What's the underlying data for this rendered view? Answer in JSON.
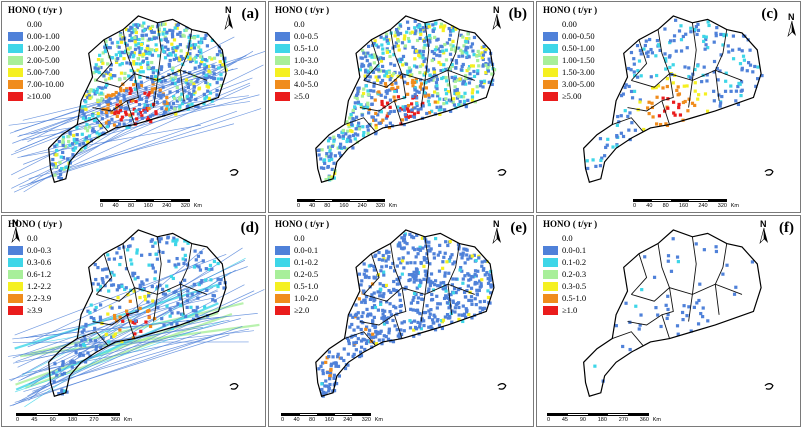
{
  "panels": [
    {
      "id": "a",
      "label": "(a)",
      "legend_title": "HONO ( t/yr )",
      "legend": [
        {
          "text": "0.00",
          "color": "#ffffff"
        },
        {
          "text": "0.00-1.00",
          "color": "#4f81d9"
        },
        {
          "text": "1.00-2.00",
          "color": "#3ed6e8"
        },
        {
          "text": "2.00-5.00",
          "color": "#a8ef9a"
        },
        {
          "text": "5.00-7.00",
          "color": "#f5f021"
        },
        {
          "text": "7.00-10.00",
          "color": "#f08c1c"
        },
        {
          "text": "≥10.00",
          "color": "#ea1c1c"
        }
      ],
      "scale_ticks": [
        "0",
        "40",
        "80",
        "160",
        "240",
        "320"
      ],
      "scale_unit": "Km",
      "north": "N"
    },
    {
      "id": "b",
      "label": "(b)",
      "legend_title": "HONO ( t/yr )",
      "legend": [
        {
          "text": "0.0",
          "color": "#ffffff"
        },
        {
          "text": "0.0-0.5",
          "color": "#4f81d9"
        },
        {
          "text": "0.5-1.0",
          "color": "#3ed6e8"
        },
        {
          "text": "1.0-3.0",
          "color": "#a8ef9a"
        },
        {
          "text": "3.0-4.0",
          "color": "#f5f021"
        },
        {
          "text": "4.0-5.0",
          "color": "#f08c1c"
        },
        {
          "text": "≥5.0",
          "color": "#ea1c1c"
        }
      ],
      "scale_ticks": [
        "0",
        "40",
        "80",
        "160",
        "240",
        "320"
      ],
      "scale_unit": "Km",
      "north": "N"
    },
    {
      "id": "c",
      "label": "(c)",
      "legend_title": "HONO ( t/yr )",
      "legend": [
        {
          "text": "0.00",
          "color": "#ffffff"
        },
        {
          "text": "0.00-0.50",
          "color": "#4f81d9"
        },
        {
          "text": "0.50-1.00",
          "color": "#3ed6e8"
        },
        {
          "text": "1.00-1.50",
          "color": "#a8ef9a"
        },
        {
          "text": "1.50-3.00",
          "color": "#f5f021"
        },
        {
          "text": "3.00-5.00",
          "color": "#f08c1c"
        },
        {
          "text": "≥5.00",
          "color": "#ea1c1c"
        }
      ],
      "scale_ticks": [
        "0",
        "40",
        "80",
        "160",
        "240",
        "320"
      ],
      "scale_unit": "Km",
      "north": "N"
    },
    {
      "id": "d",
      "label": "(d)",
      "legend_title": "HONO ( t/yr )",
      "legend": [
        {
          "text": "0.0",
          "color": "#ffffff"
        },
        {
          "text": "0.0-0.3",
          "color": "#4f81d9"
        },
        {
          "text": "0.3-0.6",
          "color": "#3ed6e8"
        },
        {
          "text": "0.6-1.2",
          "color": "#a8ef9a"
        },
        {
          "text": "1.2-2.2",
          "color": "#f5f021"
        },
        {
          "text": "2.2-3.9",
          "color": "#f08c1c"
        },
        {
          "text": "≥3.9",
          "color": "#ea1c1c"
        }
      ],
      "scale_ticks": [
        "0",
        "45",
        "90",
        "180",
        "270",
        "360"
      ],
      "scale_unit": "Km",
      "north": "N"
    },
    {
      "id": "e",
      "label": "(e)",
      "legend_title": "HONO ( t/yr )",
      "legend": [
        {
          "text": "0.0",
          "color": "#ffffff"
        },
        {
          "text": "0.0-0.1",
          "color": "#4f81d9"
        },
        {
          "text": "0.1-0.2",
          "color": "#3ed6e8"
        },
        {
          "text": "0.2-0.5",
          "color": "#a8ef9a"
        },
        {
          "text": "0.5-1.0",
          "color": "#f5f021"
        },
        {
          "text": "1.0-2.0",
          "color": "#f08c1c"
        },
        {
          "text": "≥2.0",
          "color": "#ea1c1c"
        }
      ],
      "scale_ticks": [
        "0",
        "40",
        "80",
        "160",
        "240",
        "320"
      ],
      "scale_unit": "Km",
      "north": "N"
    },
    {
      "id": "f",
      "label": "(f)",
      "legend_title": "HONO ( t/yr )",
      "legend": [
        {
          "text": "0.0",
          "color": "#ffffff"
        },
        {
          "text": "0.0-0.1",
          "color": "#4f81d9"
        },
        {
          "text": "0.1-0.2",
          "color": "#3ed6e8"
        },
        {
          "text": "0.2-0.3",
          "color": "#a8ef9a"
        },
        {
          "text": "0.3-0.5",
          "color": "#f5f021"
        },
        {
          "text": "0.5-1.0",
          "color": "#f08c1c"
        },
        {
          "text": "≥1.0",
          "color": "#ea1c1c"
        }
      ],
      "scale_ticks": [
        "0",
        "45",
        "90",
        "180",
        "270",
        "360"
      ],
      "scale_unit": "Km",
      "north": "N"
    }
  ]
}
